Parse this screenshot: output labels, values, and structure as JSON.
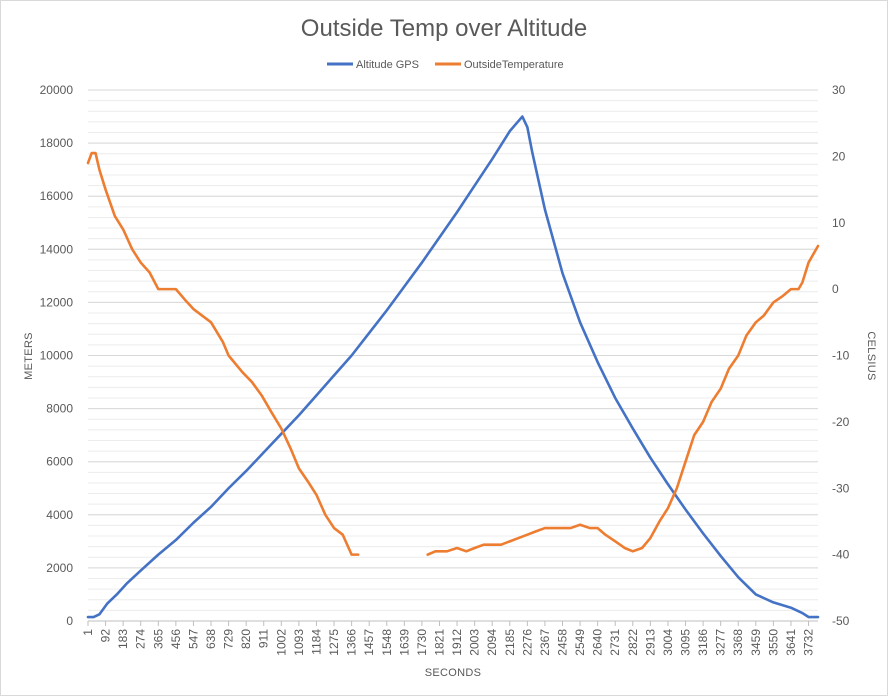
{
  "chart_data": {
    "type": "line",
    "title": "Outside Temp over Altitude",
    "xlabel": "SECONDS",
    "ylabel": "METERS",
    "y2label": "CELSIUS",
    "legend_position": "top",
    "grid": true,
    "xlim": [
      1,
      3781
    ],
    "ylim": [
      0,
      20000
    ],
    "y2lim": [
      -50,
      30
    ],
    "x_ticks": [
      1,
      92,
      183,
      274,
      365,
      456,
      547,
      638,
      729,
      820,
      911,
      1002,
      1093,
      1184,
      1275,
      1366,
      1457,
      1548,
      1639,
      1730,
      1821,
      1912,
      2003,
      2094,
      2185,
      2276,
      2367,
      2458,
      2549,
      2640,
      2731,
      2822,
      2913,
      3004,
      3095,
      3186,
      3277,
      3368,
      3459,
      3550,
      3641,
      3732
    ],
    "y_ticks": [
      0,
      2000,
      4000,
      6000,
      8000,
      10000,
      12000,
      14000,
      16000,
      18000,
      20000
    ],
    "y2_ticks": [
      -50,
      -40,
      -30,
      -20,
      -10,
      0,
      10,
      20,
      30
    ],
    "series": [
      {
        "name": "Altitude GPS",
        "color": "#4472c4",
        "axis": "left",
        "x": [
          1,
          30,
          60,
          100,
          150,
          200,
          274,
          365,
          456,
          547,
          638,
          729,
          820,
          911,
          1002,
          1093,
          1184,
          1275,
          1366,
          1457,
          1548,
          1639,
          1730,
          1821,
          1912,
          2003,
          2094,
          2185,
          2250,
          2276,
          2300,
          2367,
          2458,
          2549,
          2640,
          2731,
          2822,
          2913,
          3004,
          3095,
          3186,
          3277,
          3368,
          3459,
          3550,
          3641,
          3700,
          3732,
          3781
        ],
        "values": [
          150,
          150,
          250,
          650,
          1000,
          1400,
          1900,
          2500,
          3050,
          3700,
          4300,
          5000,
          5650,
          6350,
          7050,
          7750,
          8500,
          9250,
          10000,
          10850,
          11700,
          12600,
          13500,
          14450,
          15400,
          16400,
          17400,
          18450,
          19000,
          18600,
          17700,
          15500,
          13100,
          11250,
          9750,
          8400,
          7250,
          6150,
          5150,
          4200,
          3300,
          2450,
          1650,
          1000,
          700,
          500,
          300,
          150,
          150
        ]
      },
      {
        "name": "OutsideTemperature",
        "color": "#ed7d31",
        "axis": "right",
        "x": [
          1,
          20,
          40,
          60,
          92,
          140,
          183,
          230,
          274,
          320,
          365,
          456,
          500,
          547,
          638,
          700,
          729,
          800,
          850,
          900,
          950,
          1002,
          1050,
          1093,
          1140,
          1184,
          1230,
          1275,
          1320,
          1366,
          1400
        ],
        "values": [
          19,
          20.5,
          20.5,
          18,
          15,
          11,
          9,
          6,
          4,
          2.5,
          0,
          0,
          -1.5,
          -3,
          -5,
          -8,
          -10,
          -12.5,
          -14,
          -16,
          -18.5,
          -21,
          -24,
          -27,
          -29,
          -31,
          -34,
          -36,
          -37,
          -40,
          -40
        ],
        "x2": [
          1760,
          1800,
          1821,
          1860,
          1912,
          1960,
          2003,
          2050,
          2094,
          2140,
          2185,
          2230,
          2276,
          2320,
          2367,
          2410,
          2458,
          2500,
          2549,
          2600,
          2640,
          2680,
          2731,
          2780,
          2822,
          2870,
          2913,
          2960,
          3004,
          3050,
          3095,
          3140,
          3186,
          3230,
          3277,
          3320,
          3368,
          3410,
          3459,
          3500,
          3550,
          3600,
          3641,
          3680,
          3700,
          3732,
          3781
        ],
        "values2": [
          -40,
          -39.5,
          -39.5,
          -39.5,
          -39,
          -39.5,
          -39,
          -38.5,
          -38.5,
          -38.5,
          -38,
          -37.5,
          -37,
          -36.5,
          -36,
          -36,
          -36,
          -36,
          -35.5,
          -36,
          -36,
          -37,
          -38,
          -39,
          -39.5,
          -39,
          -37.5,
          -35,
          -33,
          -30,
          -26,
          -22,
          -20,
          -17,
          -15,
          -12,
          -10,
          -7,
          -5,
          -4,
          -2,
          -1,
          0,
          0,
          1,
          4,
          6.5
        ]
      }
    ]
  }
}
